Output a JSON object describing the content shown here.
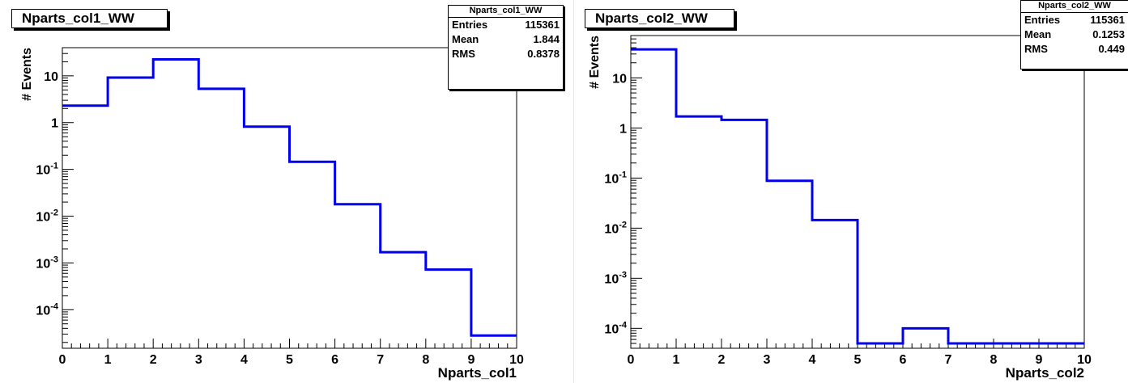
{
  "chart_data": [
    {
      "type": "histogram",
      "title": "Nparts_col1_WW",
      "xlabel": "Nparts_col1",
      "ylabel": "# Events",
      "xlim": [
        0,
        10
      ],
      "ylim": [
        1.5e-05,
        40
      ],
      "log_y": true,
      "grid": false,
      "x_ticks": [
        "0",
        "1",
        "2",
        "3",
        "4",
        "5",
        "6",
        "7",
        "8",
        "9",
        "10"
      ],
      "y_ticks": [
        "10",
        "1",
        "10^-1",
        "10^-2",
        "10^-3",
        "10^-4"
      ],
      "bin_edges": [
        0,
        1,
        2,
        3,
        4,
        5,
        6,
        7,
        8,
        9,
        10
      ],
      "values": [
        2.3,
        9.2,
        22.5,
        5.3,
        0.82,
        0.145,
        0.018,
        0.0017,
        0.00072,
        2.8e-05
      ],
      "line_color": "#0000ee",
      "stats": {
        "title": "Nparts_col1_WW",
        "rows": [
          {
            "label": "Entries",
            "value": "115361"
          },
          {
            "label": "Mean",
            "value": "1.844"
          },
          {
            "label": "RMS",
            "value": "0.8378"
          }
        ]
      }
    },
    {
      "type": "histogram",
      "title": "Nparts_col2_WW",
      "xlabel": "Nparts_col2",
      "ylabel": "# Events",
      "xlim": [
        0,
        10
      ],
      "ylim": [
        4e-05,
        70
      ],
      "log_y": true,
      "grid": false,
      "x_ticks": [
        "0",
        "1",
        "2",
        "3",
        "4",
        "5",
        "6",
        "7",
        "8",
        "9",
        "10"
      ],
      "y_ticks": [
        "10",
        "1",
        "10^-1",
        "10^-2",
        "10^-3",
        "10^-4"
      ],
      "bin_edges": [
        0,
        1,
        2,
        3,
        4,
        5,
        6,
        7,
        8,
        9,
        10
      ],
      "values": [
        37,
        1.7,
        1.45,
        0.088,
        0.0145,
        5e-05,
        0.0001,
        5e-05,
        5e-05,
        5e-05
      ],
      "line_color": "#0000ee",
      "stats": {
        "title": "Nparts_col2_WW",
        "rows": [
          {
            "label": "Entries",
            "value": "115361"
          },
          {
            "label": "Mean",
            "value": "0.1253"
          },
          {
            "label": "RMS",
            "value": "0.449"
          }
        ]
      }
    }
  ]
}
